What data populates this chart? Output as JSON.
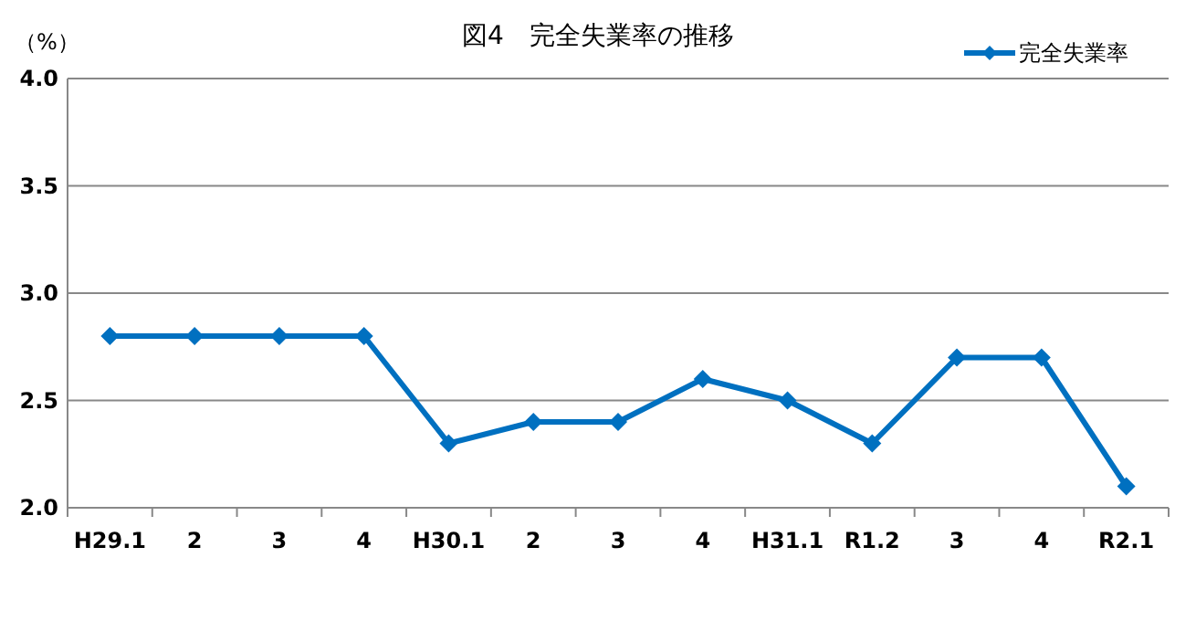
{
  "chart_data": {
    "type": "line",
    "title": "図4　完全失業率の推移",
    "ylabel": "（%）",
    "categories": [
      "H29.1",
      "2",
      "3",
      "4",
      "H30.1",
      "2",
      "3",
      "4",
      "H31.1",
      "R1.2",
      "3",
      "4",
      "R2.1"
    ],
    "series": [
      {
        "name": "完全失業率",
        "color": "#0070c0",
        "values": [
          2.8,
          2.8,
          2.8,
          2.8,
          2.3,
          2.4,
          2.4,
          2.6,
          2.5,
          2.3,
          2.7,
          2.7,
          2.1
        ]
      }
    ],
    "ylim": [
      2.0,
      4.0
    ],
    "yticks": [
      {
        "value": 2,
        "label": "2.0"
      },
      {
        "value": 2.5,
        "label": "2.5"
      },
      {
        "value": 3,
        "label": "3.0"
      },
      {
        "value": 3.5,
        "label": "3.5"
      },
      {
        "value": 4,
        "label": "4.0"
      }
    ],
    "grid": "y",
    "legend": "top right",
    "marker": "diamond",
    "line_style": "solid"
  }
}
